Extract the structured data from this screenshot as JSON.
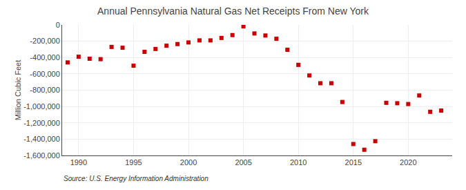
{
  "chart_data": {
    "type": "scatter",
    "title": "Annual Pennsylvania Natural Gas Net Receipts From New York",
    "ylabel": "Million Cubic Feet",
    "annotations": [
      "Source: U.S. Energy Information Administration"
    ],
    "x": [
      1989,
      1990,
      1991,
      1992,
      1993,
      1994,
      1995,
      1996,
      1997,
      1998,
      1999,
      2000,
      2001,
      2002,
      2003,
      2004,
      2005,
      2006,
      2007,
      2008,
      2009,
      2010,
      2011,
      2012,
      2013,
      2014,
      2015,
      2016,
      2017,
      2018,
      2019,
      2020,
      2021,
      2022,
      2023
    ],
    "values": [
      -460000,
      -390000,
      -415000,
      -420000,
      -270000,
      -280000,
      -500000,
      -330000,
      -295000,
      -255000,
      -235000,
      -215000,
      -190000,
      -190000,
      -160000,
      -125000,
      -18000,
      -105000,
      -130000,
      -170000,
      -305000,
      -490000,
      -620000,
      -715000,
      -715000,
      -945000,
      -1460000,
      -1530000,
      -1425000,
      -955000,
      -960000,
      -970000,
      -865000,
      -1065000,
      -1050000
    ],
    "color": "#cc0000",
    "marker": "square",
    "xlim": [
      1988.5,
      2024
    ],
    "xticks": [
      1990,
      1995,
      2000,
      2005,
      2010,
      2015,
      2020
    ],
    "ylim": [
      -1600000,
      0
    ],
    "yticks": [
      0,
      {
        "value": -200000,
        "label": "-200,000"
      },
      {
        "value": -400000,
        "label": "-400,000"
      },
      {
        "value": -600000,
        "label": "-600,000"
      },
      {
        "value": -800000,
        "label": "-800,000"
      },
      {
        "value": -1000000,
        "label": "-1,000,000"
      },
      {
        "value": -1200000,
        "label": "-1,200,000"
      },
      {
        "value": -1400000,
        "label": "-1,400,000"
      },
      {
        "value": -1600000,
        "label": "-1,600,000"
      }
    ],
    "grid": true
  }
}
